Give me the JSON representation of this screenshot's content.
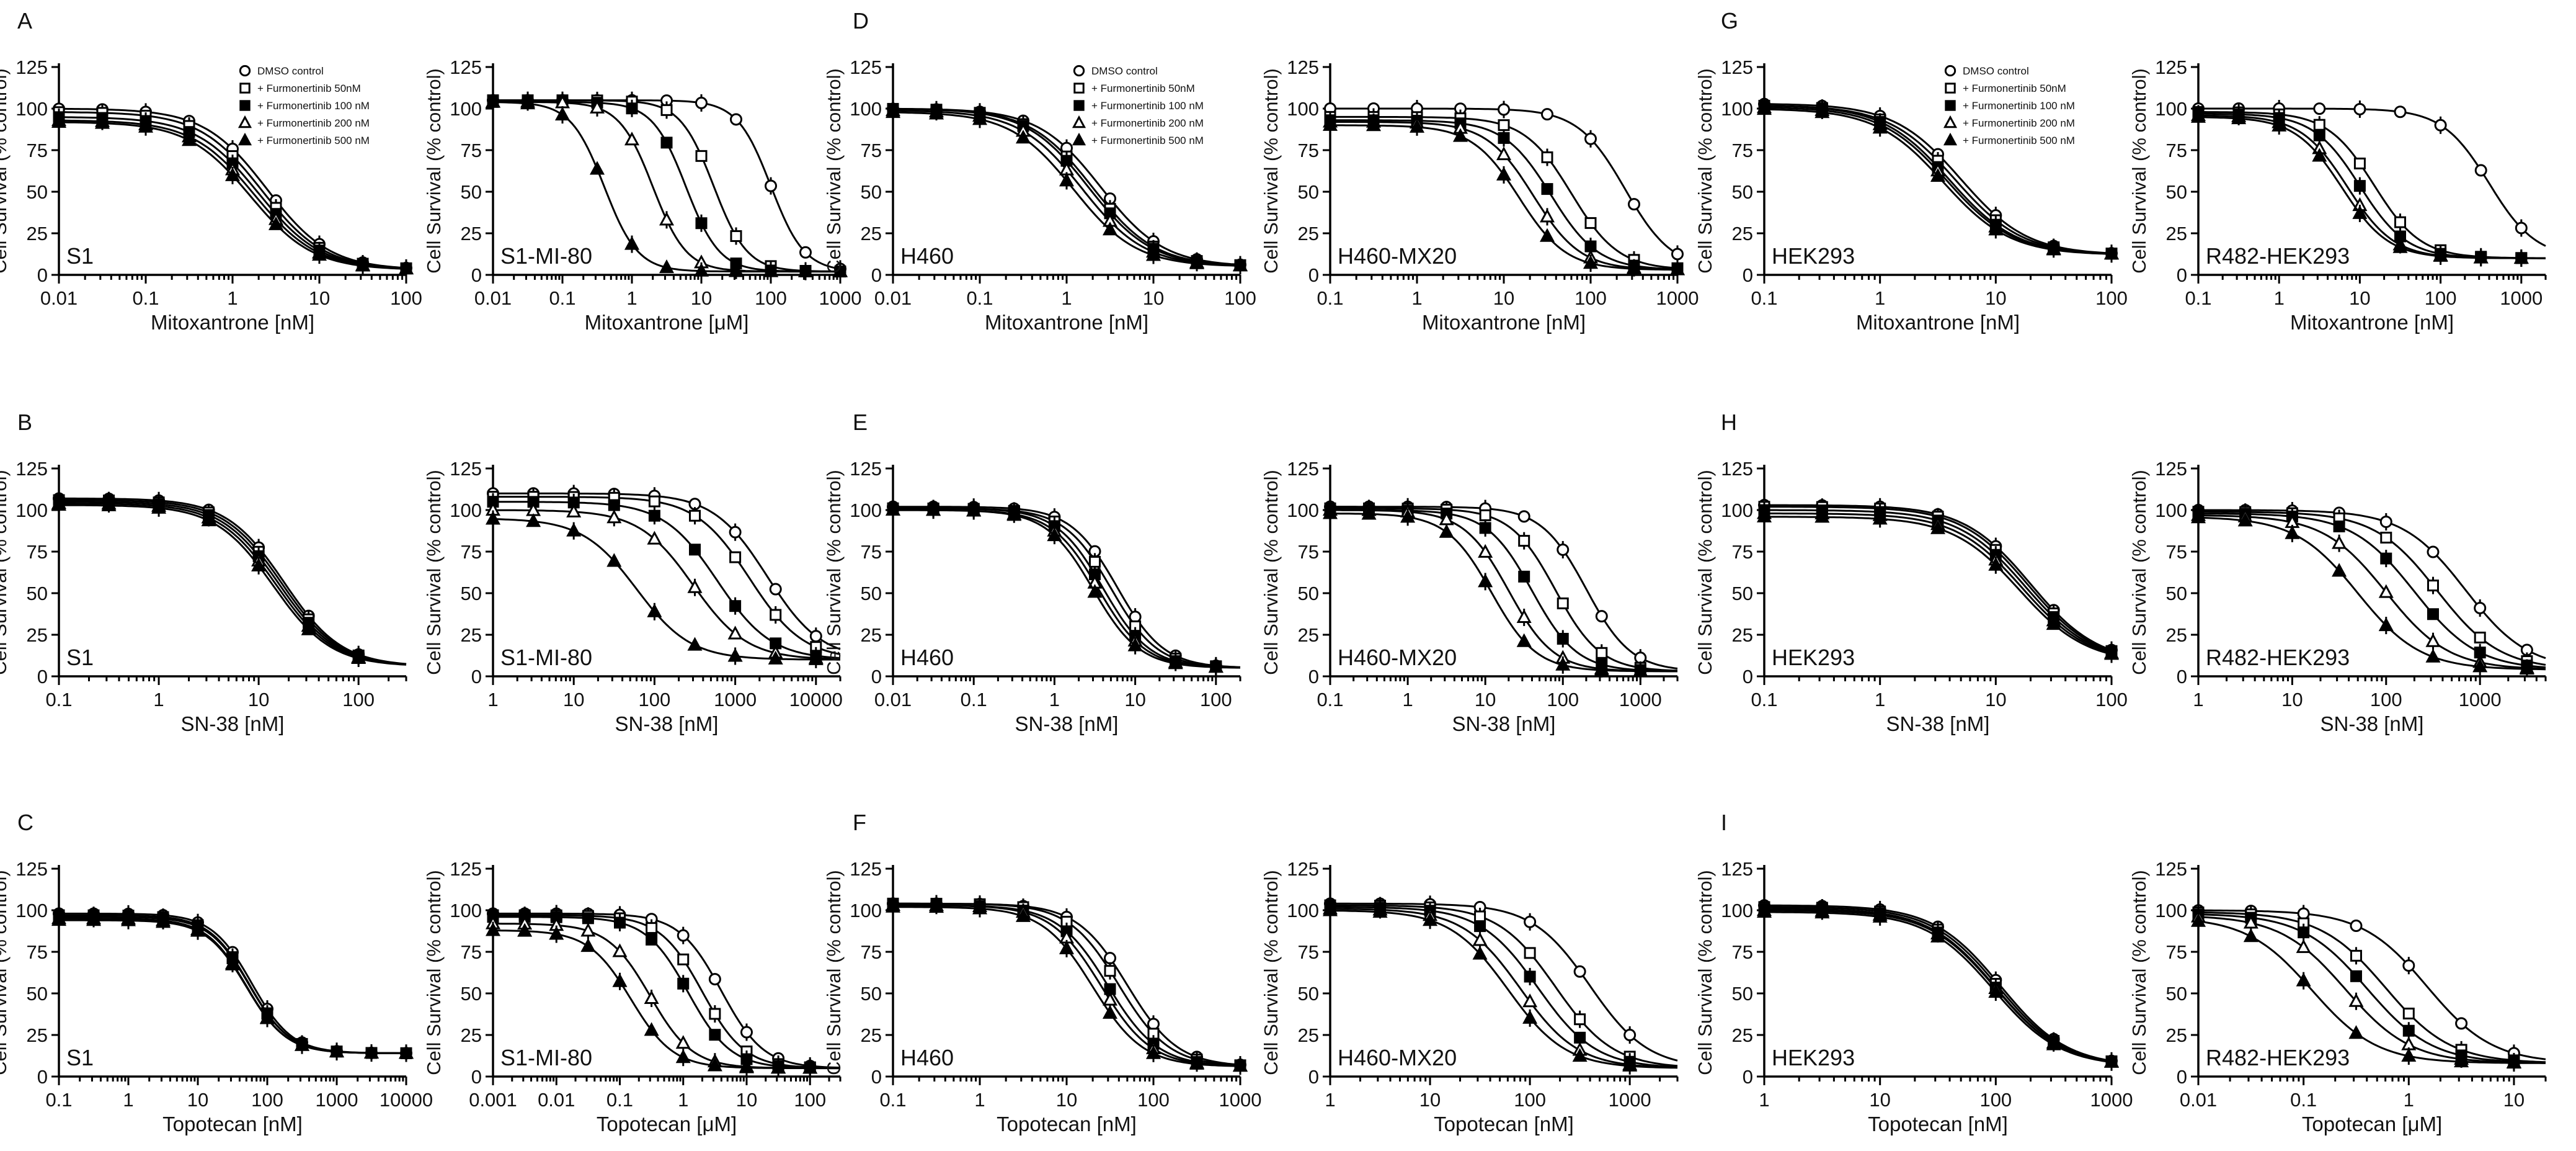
{
  "figure": {
    "ylabel": "Cell Survival (% control)",
    "y_ticks": [
      "0",
      "25",
      "50",
      "75",
      "100",
      "125"
    ]
  },
  "legend": {
    "entries": [
      {
        "label": "DMSO control",
        "marker": "circle-open"
      },
      {
        "label": "+ Furmonertinib 50nM",
        "marker": "square-open"
      },
      {
        "label": "+ Furmonertinib 100 nM",
        "marker": "square-filled"
      },
      {
        "label": "+ Furmonertinib 200 nM",
        "marker": "triangle-open"
      },
      {
        "label": "+ Furmonertinib 500 nM",
        "marker": "triangle-filled"
      }
    ]
  },
  "chart_data": [
    {
      "type": "scatter",
      "letter": "A",
      "cell_label": "S1",
      "xlabel": "Mitoxantrone [nM]",
      "ylim": [
        0,
        125
      ],
      "x_range": [
        0.01,
        100
      ],
      "x_ticks": [
        "0.01",
        "0.1",
        "1",
        "10",
        "100"
      ],
      "ic50": [
        2.5,
        2.2,
        2.0,
        1.8,
        1.6
      ],
      "top": [
        100,
        98,
        95,
        93,
        92
      ],
      "bottom": [
        3,
        3,
        3,
        3,
        3
      ],
      "hill": [
        1.2,
        1.2,
        1.2,
        1.2,
        1.2
      ]
    },
    {
      "type": "scatter",
      "cell_label": "S1-MI-80",
      "xlabel": "Mitoxantrone [μM]",
      "ylim": [
        0,
        125
      ],
      "x_range": [
        0.01,
        1000
      ],
      "x_ticks": [
        "0.01",
        "0.1",
        "1",
        "10",
        "100",
        "1000"
      ],
      "ic50": [
        100,
        15,
        6,
        2,
        0.4
      ],
      "top": [
        105,
        105,
        104,
        104,
        104
      ],
      "bottom": [
        2,
        2,
        2,
        2,
        2
      ],
      "hill": [
        1.8,
        1.8,
        1.8,
        1.8,
        1.8
      ]
    },
    {
      "type": "scatter",
      "letter": "D",
      "cell_label": "H460",
      "xlabel": "Mitoxantrone [nM]",
      "ylim": [
        0,
        125
      ],
      "x_range": [
        0.01,
        100
      ],
      "x_ticks": [
        "0.01",
        "0.1",
        "1",
        "10",
        "100"
      ],
      "ic50": [
        2.5,
        2.0,
        1.8,
        1.5,
        1.2
      ],
      "top": [
        100,
        100,
        100,
        99,
        98
      ],
      "bottom": [
        5,
        5,
        5,
        5,
        5
      ],
      "hill": [
        1.2,
        1.2,
        1.2,
        1.2,
        1.2
      ]
    },
    {
      "type": "scatter",
      "cell_label": "H460-MX20",
      "xlabel": "Mitoxantrone [nM]",
      "ylim": [
        0,
        125
      ],
      "x_range": [
        0.1,
        1000
      ],
      "x_ticks": [
        "0.1",
        "1",
        "10",
        "100",
        "1000"
      ],
      "ic50": [
        250,
        60,
        35,
        22,
        15
      ],
      "top": [
        100,
        95,
        93,
        92,
        90
      ],
      "bottom": [
        3,
        3,
        3,
        3,
        3
      ],
      "hill": [
        1.6,
        1.6,
        1.6,
        1.6,
        1.6
      ]
    },
    {
      "type": "scatter",
      "letter": "G",
      "cell_label": "HEK293",
      "xlabel": "Mitoxantrone [nM]",
      "ylim": [
        0,
        125
      ],
      "x_range": [
        0.1,
        100
      ],
      "x_ticks": [
        "0.1",
        "1",
        "10",
        "100"
      ],
      "ic50": [
        5,
        4.5,
        4,
        3.8,
        3.5
      ],
      "top": [
        103,
        102,
        102,
        101,
        100
      ],
      "bottom": [
        12,
        12,
        12,
        12,
        12
      ],
      "hill": [
        1.5,
        1.5,
        1.5,
        1.5,
        1.5
      ]
    },
    {
      "type": "scatter",
      "cell_label": "R482-HEK293",
      "xlabel": "Mitoxantrone [nM]",
      "ylim": [
        0,
        125
      ],
      "x_range": [
        0.1,
        2000
      ],
      "x_ticks": [
        "0.1",
        "1",
        "10",
        "100",
        "1000"
      ],
      "ic50": [
        400,
        15,
        10,
        7,
        6
      ],
      "top": [
        100,
        98,
        97,
        96,
        95
      ],
      "bottom": [
        10,
        10,
        10,
        10,
        10
      ],
      "hill": [
        1.5,
        1.5,
        1.5,
        1.5,
        1.5
      ]
    },
    {
      "type": "scatter",
      "letter": "B",
      "cell_label": "S1",
      "xlabel": "SN-38 [nM]",
      "ylim": [
        0,
        125
      ],
      "x_range": [
        0.1,
        300
      ],
      "x_ticks": [
        "0.1",
        "1",
        "10",
        "100"
      ],
      "ic50": [
        18,
        17,
        16,
        15,
        14
      ],
      "top": [
        107,
        106,
        105,
        104,
        103
      ],
      "bottom": [
        6,
        6,
        6,
        6,
        6
      ],
      "hill": [
        1.5,
        1.5,
        1.5,
        1.5,
        1.5
      ]
    },
    {
      "type": "scatter",
      "cell_label": "S1-MI-80",
      "xlabel": "SN-38 [nM]",
      "ylim": [
        0,
        125
      ],
      "x_range": [
        1,
        20000
      ],
      "x_ticks": [
        "1",
        "10",
        "100",
        "1000",
        "10000"
      ],
      "ic50": [
        2500,
        1500,
        600,
        300,
        60
      ],
      "top": [
        110,
        108,
        105,
        100,
        95
      ],
      "bottom": [
        10,
        10,
        10,
        10,
        10
      ],
      "hill": [
        1.3,
        1.3,
        1.3,
        1.3,
        1.3
      ]
    },
    {
      "type": "scatter",
      "letter": "E",
      "cell_label": "H460",
      "xlabel": "SN-38 [nM]",
      "ylim": [
        0,
        125
      ],
      "x_range": [
        0.01,
        200
      ],
      "x_ticks": [
        "0.01",
        "0.1",
        "1",
        "10",
        "100"
      ],
      "ic50": [
        6,
        5,
        4,
        3.5,
        3
      ],
      "top": [
        102,
        101,
        101,
        100,
        100
      ],
      "bottom": [
        5,
        5,
        5,
        5,
        5
      ],
      "hill": [
        1.5,
        1.5,
        1.5,
        1.5,
        1.5
      ]
    },
    {
      "type": "scatter",
      "cell_label": "H460-MX20",
      "xlabel": "SN-38 [nM]",
      "ylim": [
        0,
        125
      ],
      "x_range": [
        0.1,
        3000
      ],
      "x_ticks": [
        "0.1",
        "1",
        "10",
        "100",
        "1000"
      ],
      "ic50": [
        200,
        80,
        40,
        20,
        12
      ],
      "top": [
        102,
        101,
        100,
        100,
        98
      ],
      "bottom": [
        3,
        3,
        3,
        3,
        3
      ],
      "hill": [
        1.5,
        1.5,
        1.5,
        1.5,
        1.5
      ]
    },
    {
      "type": "scatter",
      "letter": "H",
      "cell_label": "HEK293",
      "xlabel": "SN-38 [nM]",
      "ylim": [
        0,
        125
      ],
      "x_range": [
        0.1,
        100
      ],
      "x_ticks": [
        "0.1",
        "1",
        "10",
        "100"
      ],
      "ic50": [
        20,
        19,
        18,
        17,
        16
      ],
      "top": [
        103,
        102,
        100,
        98,
        96
      ],
      "bottom": [
        8,
        8,
        8,
        8,
        8
      ],
      "hill": [
        1.5,
        1.5,
        1.5,
        1.5,
        1.5
      ]
    },
    {
      "type": "scatter",
      "cell_label": "R482-HEK293",
      "xlabel": "SN-38 [nM]",
      "ylim": [
        0,
        125
      ],
      "x_range": [
        1,
        5000
      ],
      "x_ticks": [
        "1",
        "10",
        "100",
        "1000"
      ],
      "ic50": [
        700,
        350,
        200,
        100,
        50
      ],
      "top": [
        100,
        99,
        98,
        97,
        96
      ],
      "bottom": [
        4,
        4,
        4,
        4,
        4
      ],
      "hill": [
        1.3,
        1.3,
        1.3,
        1.3,
        1.3
      ]
    },
    {
      "type": "scatter",
      "letter": "C",
      "cell_label": "S1",
      "xlabel": "Topotecan [nM]",
      "ylim": [
        0,
        125
      ],
      "x_range": [
        0.1,
        10000
      ],
      "x_ticks": [
        "0.1",
        "1",
        "10",
        "100",
        "1000",
        "10000"
      ],
      "ic50": [
        60,
        55,
        55,
        50,
        50
      ],
      "top": [
        98,
        97,
        96,
        95,
        94
      ],
      "bottom": [
        14,
        14,
        14,
        14,
        14
      ],
      "hill": [
        1.5,
        1.5,
        1.5,
        1.5,
        1.5
      ]
    },
    {
      "type": "scatter",
      "cell_label": "S1-MI-80",
      "xlabel": "Topotecan [μM]",
      "ylim": [
        0,
        125
      ],
      "x_range": [
        0.001,
        300
      ],
      "x_ticks": [
        "0.001",
        "0.01",
        "0.1",
        "1",
        "10",
        "100"
      ],
      "ic50": [
        4,
        2,
        1.2,
        0.3,
        0.15
      ],
      "top": [
        98,
        97,
        96,
        92,
        88
      ],
      "bottom": [
        5,
        5,
        5,
        5,
        5
      ],
      "hill": [
        1.3,
        1.3,
        1.3,
        1.3,
        1.3
      ]
    },
    {
      "type": "scatter",
      "letter": "F",
      "cell_label": "H460",
      "xlabel": "Topotecan [nM]",
      "ylim": [
        0,
        125
      ],
      "x_range": [
        0.1,
        1000
      ],
      "x_ticks": [
        "0.1",
        "1",
        "10",
        "100",
        "1000"
      ],
      "ic50": [
        50,
        40,
        30,
        25,
        20
      ],
      "top": [
        104,
        104,
        103,
        103,
        102
      ],
      "bottom": [
        6,
        6,
        6,
        6,
        6
      ],
      "hill": [
        1.5,
        1.5,
        1.5,
        1.5,
        1.5
      ]
    },
    {
      "type": "scatter",
      "cell_label": "H460-MX20",
      "xlabel": "Topotecan [nM]",
      "ylim": [
        0,
        125
      ],
      "x_range": [
        1,
        3000
      ],
      "x_ticks": [
        "1",
        "10",
        "100",
        "1000"
      ],
      "ic50": [
        400,
        180,
        120,
        80,
        60
      ],
      "top": [
        104,
        103,
        102,
        101,
        100
      ],
      "bottom": [
        5,
        5,
        5,
        5,
        5
      ],
      "hill": [
        1.5,
        1.5,
        1.5,
        1.5,
        1.5
      ]
    },
    {
      "type": "scatter",
      "letter": "I",
      "cell_label": "HEK293",
      "xlabel": "Topotecan [nM]",
      "ylim": [
        0,
        125
      ],
      "x_range": [
        1,
        1000
      ],
      "x_ticks": [
        "1",
        "10",
        "100",
        "1000"
      ],
      "ic50": [
        110,
        105,
        100,
        100,
        95
      ],
      "top": [
        103,
        102,
        101,
        100,
        99
      ],
      "bottom": [
        6,
        6,
        6,
        6,
        6
      ],
      "hill": [
        1.5,
        1.5,
        1.5,
        1.5,
        1.5
      ]
    },
    {
      "type": "scatter",
      "cell_label": "R482-HEK293",
      "xlabel": "Topotecan [μM]",
      "ylim": [
        0,
        125
      ],
      "x_range": [
        0.01,
        20
      ],
      "x_ticks": [
        "0.01",
        "0.1",
        "1",
        "10"
      ],
      "ic50": [
        1.5,
        0.6,
        0.4,
        0.25,
        0.12
      ],
      "top": [
        100,
        99,
        98,
        97,
        96
      ],
      "bottom": [
        8,
        8,
        8,
        8,
        8
      ],
      "hill": [
        1.4,
        1.4,
        1.4,
        1.4,
        1.4
      ]
    }
  ]
}
